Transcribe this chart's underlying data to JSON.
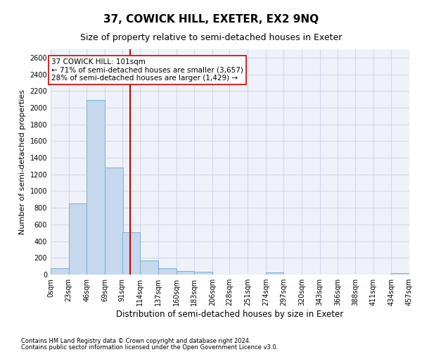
{
  "title": "37, COWICK HILL, EXETER, EX2 9NQ",
  "subtitle": "Size of property relative to semi-detached houses in Exeter",
  "xlabel": "Distribution of semi-detached houses by size in Exeter",
  "ylabel": "Number of semi-detached properties",
  "footnote1": "Contains HM Land Registry data © Crown copyright and database right 2024.",
  "footnote2": "Contains public sector information licensed under the Open Government Licence v3.0.",
  "annotation_line1": "37 COWICK HILL: 101sqm",
  "annotation_line2": "← 71% of semi-detached houses are smaller (3,657)",
  "annotation_line3": "28% of semi-detached houses are larger (1,429) →",
  "property_size": 101,
  "bar_left_edges": [
    0,
    23,
    46,
    69,
    91,
    114,
    137,
    160,
    183,
    206,
    228,
    251,
    274,
    297,
    320,
    343,
    366,
    388,
    411,
    434
  ],
  "bar_heights": [
    75,
    850,
    2090,
    1285,
    510,
    165,
    80,
    40,
    30,
    0,
    0,
    0,
    25,
    0,
    0,
    0,
    0,
    0,
    0,
    20
  ],
  "bin_width": 23,
  "bar_color": "#c5d8ed",
  "bar_edge_color": "#7aafd4",
  "vline_color": "#cc0000",
  "vline_x": 101,
  "ylim": [
    0,
    2700
  ],
  "yticks": [
    0,
    200,
    400,
    600,
    800,
    1000,
    1200,
    1400,
    1600,
    1800,
    2000,
    2200,
    2400,
    2600
  ],
  "xtick_labels": [
    "0sqm",
    "23sqm",
    "46sqm",
    "69sqm",
    "91sqm",
    "114sqm",
    "137sqm",
    "160sqm",
    "183sqm",
    "206sqm",
    "228sqm",
    "251sqm",
    "274sqm",
    "297sqm",
    "320sqm",
    "343sqm",
    "366sqm",
    "388sqm",
    "411sqm",
    "434sqm",
    "457sqm"
  ],
  "grid_color": "#d0d8e8",
  "background_color": "#eef2f8",
  "title_fontsize": 11,
  "subtitle_fontsize": 9,
  "annotation_fontsize": 7.5,
  "tick_fontsize": 7,
  "xlabel_fontsize": 8.5,
  "ylabel_fontsize": 8,
  "footnote_fontsize": 6
}
